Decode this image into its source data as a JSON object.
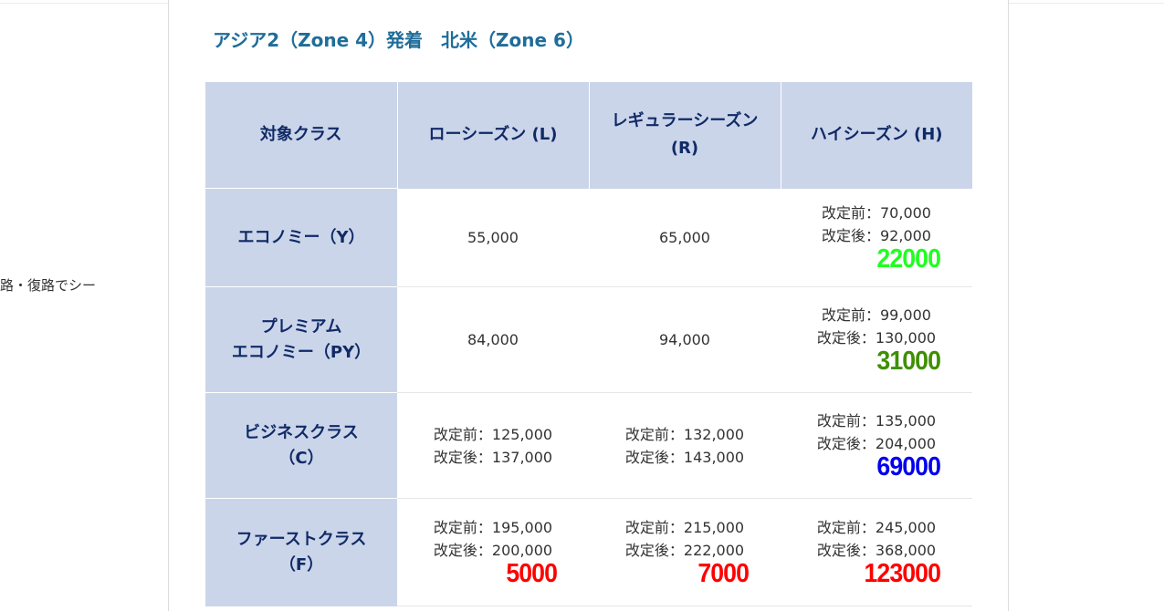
{
  "side_text": "路・復路でシー",
  "section_title": "アジア2（Zone 4）発着　北米（Zone 6）",
  "table": {
    "headers": [
      "対象クラス",
      "ローシーズン (L)",
      "レギュラーシーズン (R)",
      "ハイシーズン (H)"
    ],
    "rows": [
      {
        "class_lines": [
          "エコノミー（Y）"
        ],
        "low": {
          "single": "55,000"
        },
        "regular": {
          "single": "65,000"
        },
        "high": {
          "before": "改定前：70,000",
          "after": "改定後：92,000",
          "diff": "22000",
          "diff_color": "#1fff1f"
        }
      },
      {
        "class_lines": [
          "プレミアム",
          "エコノミー（PY）"
        ],
        "low": {
          "single": "84,000"
        },
        "regular": {
          "single": "94,000"
        },
        "high": {
          "before": "改定前：99,000",
          "after": "改定後：130,000",
          "diff": "31000",
          "diff_color": "#3f8f00"
        }
      },
      {
        "class_lines": [
          "ビジネスクラス",
          "（C）"
        ],
        "low": {
          "before": "改定前：125,000",
          "after": "改定後：137,000"
        },
        "regular": {
          "before": "改定前：132,000",
          "after": "改定後：143,000"
        },
        "high": {
          "before": "改定前：135,000",
          "after": "改定後：204,000",
          "diff": "69000",
          "diff_color": "#0000ee"
        }
      },
      {
        "class_lines": [
          "ファーストクラス",
          "（F）"
        ],
        "low": {
          "before": "改定前：195,000",
          "after": "改定後：200,000",
          "diff": "5000",
          "diff_color": "#ff0000"
        },
        "regular": {
          "before": "改定前：215,000",
          "after": "改定後：222,000",
          "diff": "7000",
          "diff_color": "#ff0000"
        },
        "high": {
          "before": "改定前：245,000",
          "after": "改定後：368,000",
          "diff": "123000",
          "diff_color": "#ff0000"
        }
      }
    ]
  }
}
